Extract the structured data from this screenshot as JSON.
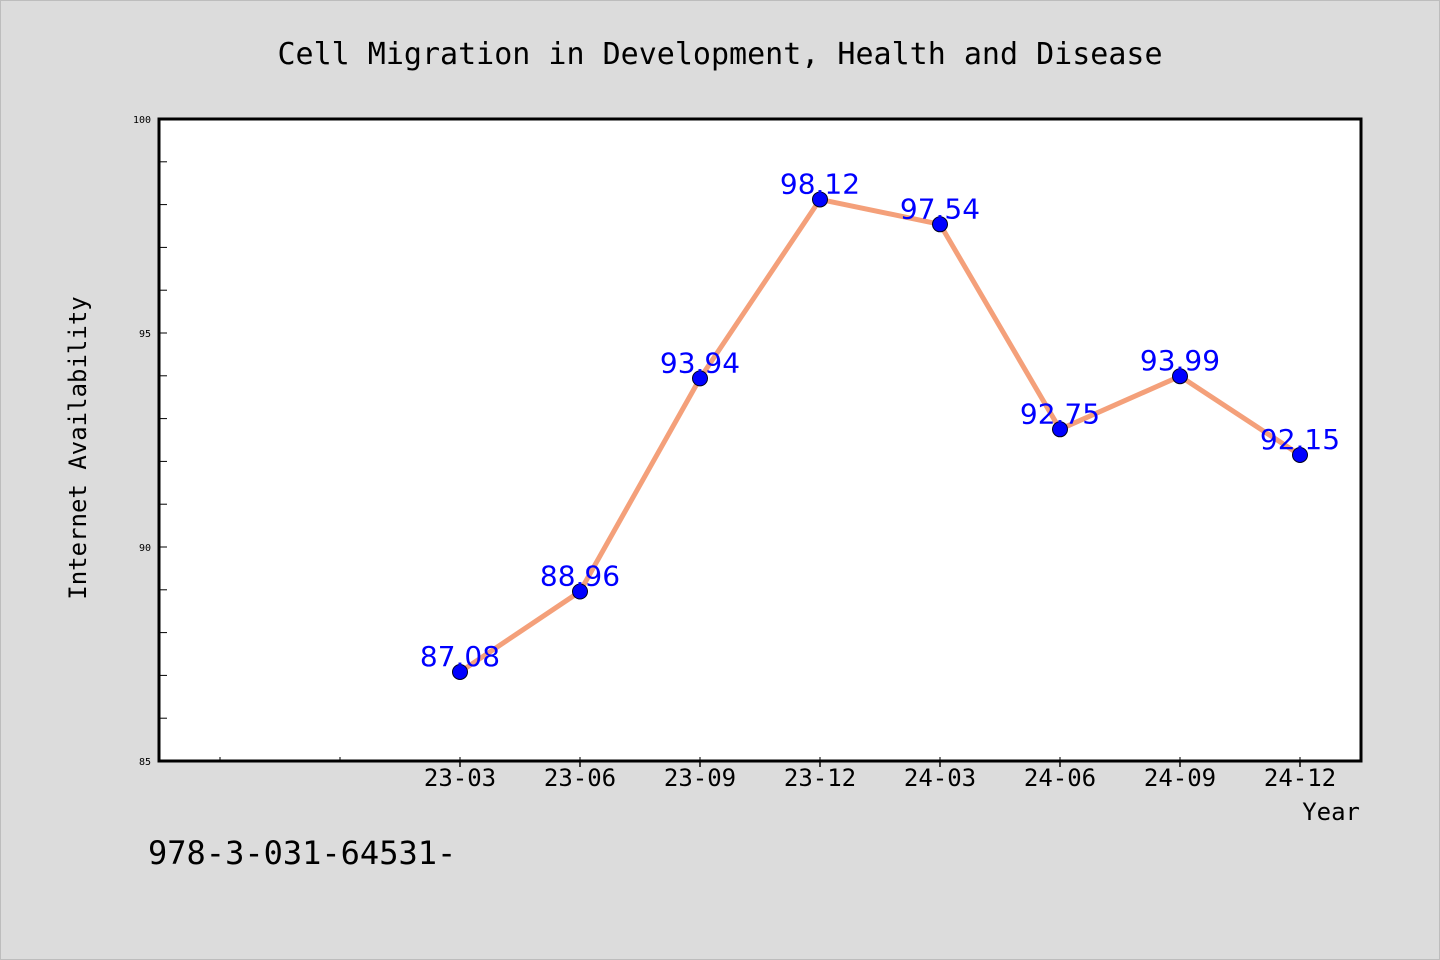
{
  "colors": {
    "background": "#dcdcdc",
    "plot_background": "#ffffff",
    "line": "#f4a07a",
    "marker": "#0000ff",
    "data_label": "#0000ff",
    "axis": "#000000"
  },
  "isbn_text": "978-3-031-64531-",
  "chart_data": {
    "type": "line",
    "title": "Cell Migration in Development, Health and Disease",
    "xlabel": "Year",
    "ylabel": "Internet Availability",
    "categories": [
      "23-03",
      "23-06",
      "23-09",
      "23-12",
      "24-03",
      "24-06",
      "24-09",
      "24-12"
    ],
    "values": [
      87.08,
      88.96,
      93.94,
      98.12,
      97.54,
      92.75,
      93.99,
      92.15
    ],
    "data_labels": [
      "87.08",
      "88.96",
      "93.94",
      "98.12",
      "97.54",
      "92.75",
      "93.99",
      "92.15"
    ],
    "ylim": [
      85,
      100
    ],
    "yticks": [
      85,
      90,
      95,
      100
    ],
    "grid": false,
    "legend": "none"
  }
}
